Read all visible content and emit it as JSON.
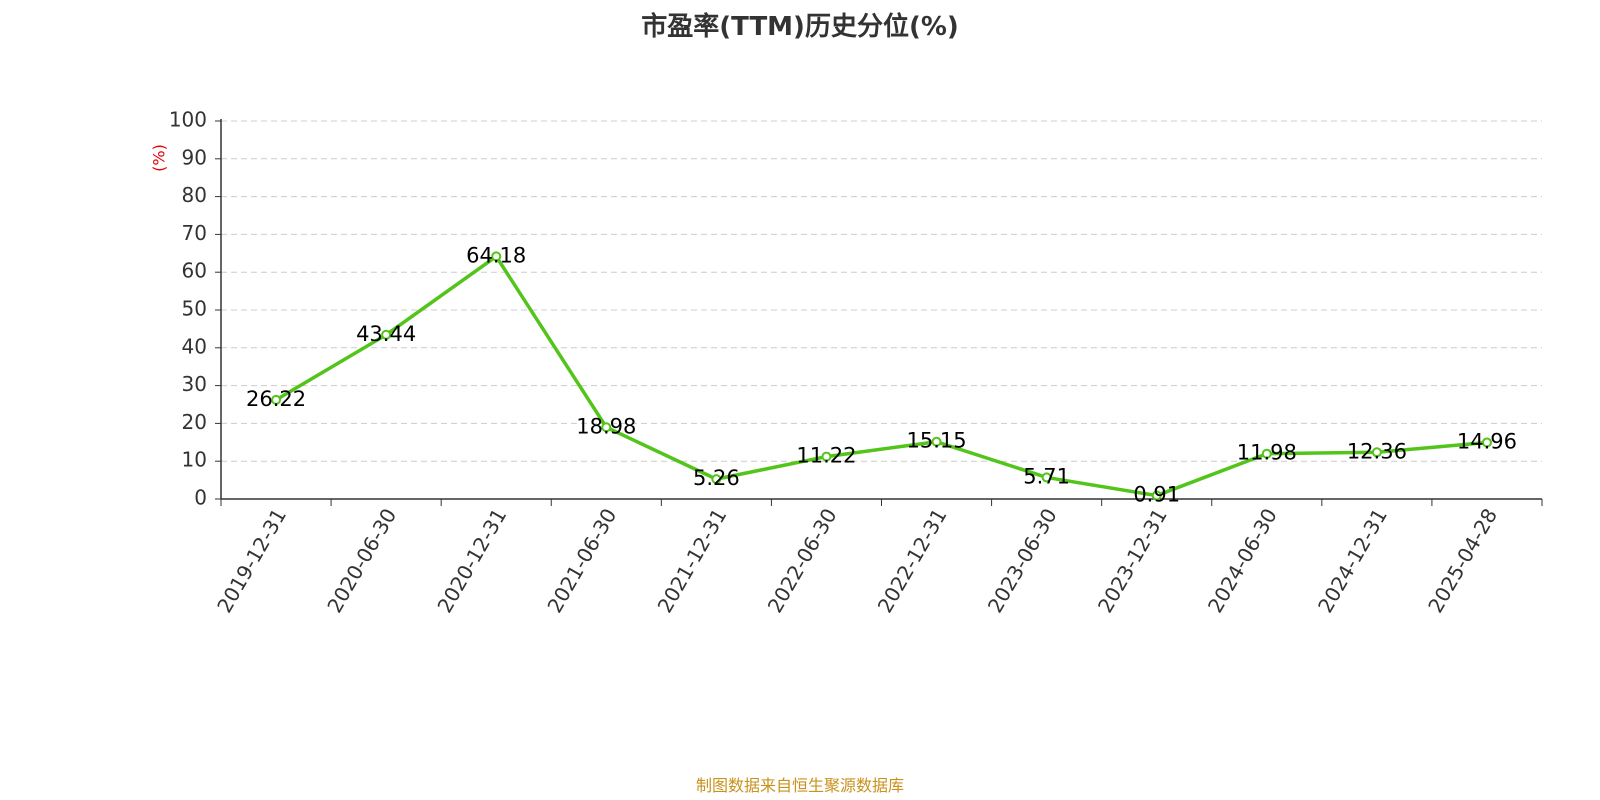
{
  "chart_data": {
    "type": "line",
    "title": "市盈率(TTM)历史分位(%)",
    "ylabel": "(%)",
    "xlabel": "",
    "categories": [
      "2019-12-31",
      "2020-06-30",
      "2020-12-31",
      "2021-06-30",
      "2021-12-31",
      "2022-06-30",
      "2022-12-31",
      "2023-06-30",
      "2023-12-31",
      "2024-06-30",
      "2024-12-31",
      "2025-04-28"
    ],
    "values": [
      26.22,
      43.44,
      64.18,
      18.98,
      5.26,
      11.22,
      15.15,
      5.71,
      0.91,
      11.98,
      12.36,
      14.96
    ],
    "data_labels": [
      "26.22",
      "43.44",
      "64.18",
      "18.98",
      "5.26",
      "11.22",
      "15.15",
      "5.71",
      "0.91",
      "11.98",
      "12.36",
      "14.96"
    ],
    "ylim": [
      0,
      100
    ],
    "yticks": [
      "0",
      "10",
      "20",
      "30",
      "40",
      "50",
      "60",
      "70",
      "80",
      "90",
      "100"
    ],
    "grid": true,
    "line_color": "#52c41a",
    "unit_color": "#e8000b",
    "source_color": "#c8921c"
  },
  "footer": {
    "source": "制图数据来自恒生聚源数据库"
  }
}
